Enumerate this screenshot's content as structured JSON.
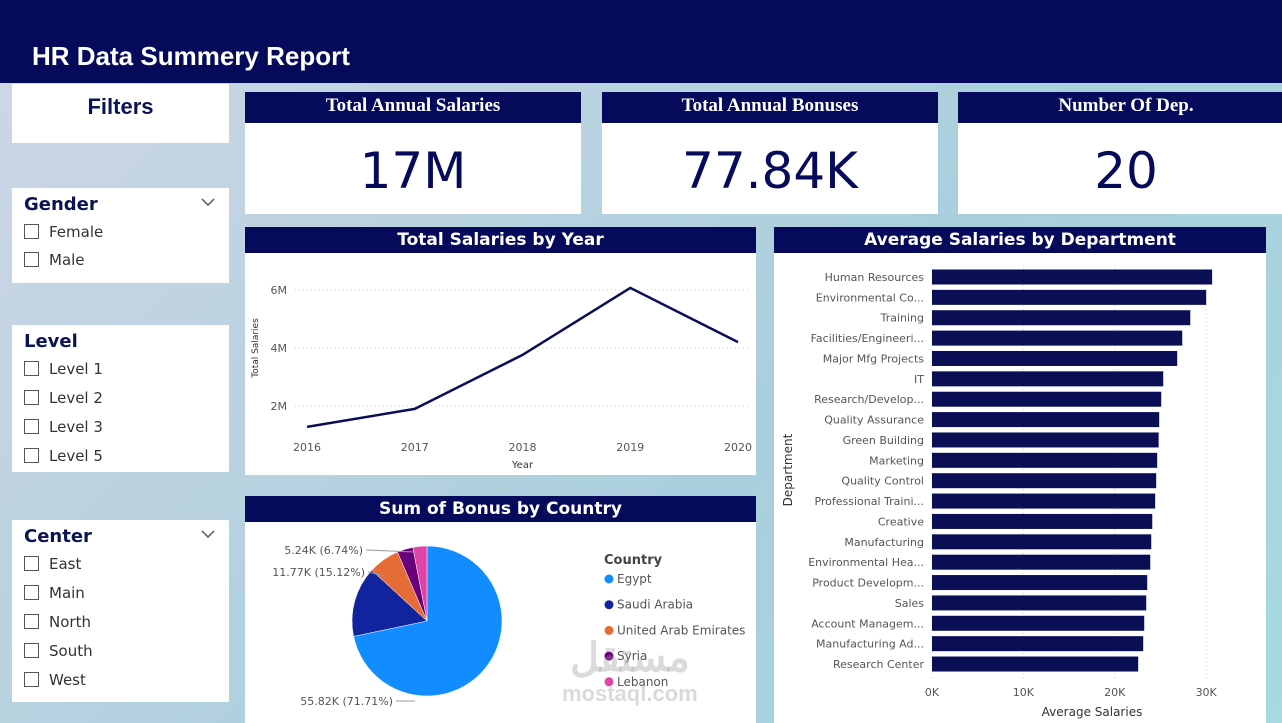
{
  "header": {
    "title": "HR Data Summery Report"
  },
  "filters": {
    "title": "Filters",
    "groups": [
      {
        "name": "Gender",
        "collapsible": true,
        "options": [
          "Female",
          "Male"
        ]
      },
      {
        "name": "Level",
        "collapsible": false,
        "options": [
          "Level 1",
          "Level 2",
          "Level 3",
          "Level 5"
        ]
      },
      {
        "name": "Center",
        "collapsible": true,
        "options": [
          "East",
          "Main",
          "North",
          "South",
          "West"
        ]
      }
    ]
  },
  "kpis": [
    {
      "title": "Total Annual Salaries",
      "value": "17M"
    },
    {
      "title": "Total Annual Bonuses",
      "value": "77.84K"
    },
    {
      "title": "Number Of Dep.",
      "value": "20"
    }
  ],
  "watermark": {
    "arabic": "مستقل",
    "latin": "mostaql.com"
  },
  "chart_data": [
    {
      "type": "line",
      "title": "Total Salaries by Year",
      "x_label": "Year",
      "y_label": "Total Salaries",
      "x": [
        2016,
        2017,
        2018,
        2019,
        2020
      ],
      "xlim": [
        2016,
        2020
      ],
      "xticks": [
        2016,
        2017,
        2018,
        2019,
        2020
      ],
      "series": [
        {
          "name": "Total Salaries",
          "color": "#0a0f55",
          "values": [
            1280000,
            1900000,
            3760000,
            6070000,
            4200000
          ]
        }
      ],
      "ylim": [
        1000000,
        7100000
      ],
      "yticks": [
        {
          "value": 2000000,
          "label": "2M"
        },
        {
          "value": 4000000,
          "label": "4M"
        },
        {
          "value": 6000000,
          "label": "6M"
        }
      ],
      "grid": true
    },
    {
      "type": "pie",
      "title": "Sum of Bonus by Country",
      "legend_title": "Country",
      "categories": [
        "Egypt",
        "Saudi Arabia",
        "United Arab Emirates",
        "Syria",
        "Lebanon"
      ],
      "values": [
        55820,
        11770,
        5240,
        2650,
        2360
      ],
      "value_labels": [
        "55.82K (71.71%)",
        "11.77K (15.12%)",
        "5.24K (6.74%)",
        null,
        null
      ],
      "colors": [
        "#118dff",
        "#12239e",
        "#e66c37",
        "#6b007b",
        "#e044a7"
      ]
    },
    {
      "type": "bar",
      "orientation": "horizontal",
      "title": "Average Salaries by Department",
      "x_label": "Average Salaries",
      "y_label": "Department",
      "color": "#0a0f55",
      "categories": [
        "Human Resources",
        "Environmental Co...",
        "Training",
        "Facilities/Engineeri...",
        "Major Mfg Projects",
        "IT",
        "Research/Develop...",
        "Quality Assurance",
        "Green Building",
        "Marketing",
        "Quality Control",
        "Professional Traini...",
        "Creative",
        "Manufacturing",
        "Environmental Hea...",
        "Product Developm...",
        "Sales",
        "Account Managem...",
        "Manufacturing Ad...",
        "Research Center"
      ],
      "values": [
        30650,
        30000,
        28260,
        27380,
        26830,
        25300,
        25080,
        24860,
        24800,
        24640,
        24530,
        24420,
        24100,
        23990,
        23880,
        23550,
        23440,
        23220,
        23110,
        22560
      ],
      "xlim": [
        0,
        33700
      ],
      "xticks": [
        {
          "value": 0,
          "label": "0K"
        },
        {
          "value": 10000,
          "label": "10K"
        },
        {
          "value": 20000,
          "label": "20K"
        },
        {
          "value": 30000,
          "label": "30K"
        }
      ],
      "grid": true
    }
  ]
}
